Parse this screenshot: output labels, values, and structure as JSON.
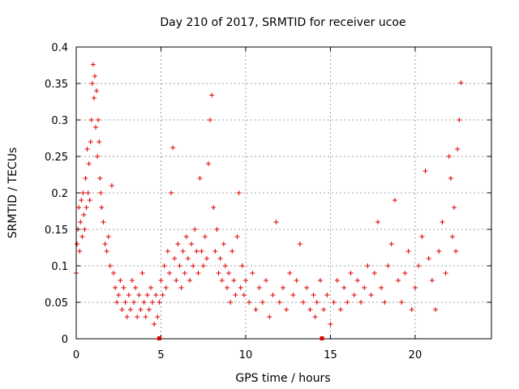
{
  "chart_data": {
    "type": "scatter",
    "title": "Day 210 of 2017, SRMTID for receiver ucoe",
    "xlabel": "GPS time / hours",
    "ylabel": "SRMTID / TECUs",
    "xlim": [
      0,
      24.5
    ],
    "ylim": [
      0,
      0.4
    ],
    "xticks": [
      0,
      5,
      10,
      15,
      20
    ],
    "xtick_labels": [
      "0",
      "5",
      "10",
      "15",
      "20"
    ],
    "yticks": [
      0,
      0.05,
      0.1,
      0.15,
      0.2,
      0.25,
      0.3,
      0.35,
      0.4
    ],
    "ytick_labels": [
      "0",
      "0.05",
      "0.1",
      "0.15",
      "0.2",
      "0.25",
      "0.3",
      "0.35",
      "0.4"
    ],
    "grid": true,
    "marker": "+",
    "color": "#dd0000",
    "markers_at_x_axis": [
      4.9,
      14.5
    ],
    "series": [
      {
        "name": "SRMTID",
        "points": [
          [
            0.0,
            0.09
          ],
          [
            0.05,
            0.13
          ],
          [
            0.1,
            0.15
          ],
          [
            0.15,
            0.18
          ],
          [
            0.2,
            0.12
          ],
          [
            0.25,
            0.16
          ],
          [
            0.3,
            0.19
          ],
          [
            0.35,
            0.14
          ],
          [
            0.4,
            0.2
          ],
          [
            0.45,
            0.17
          ],
          [
            0.5,
            0.15
          ],
          [
            0.55,
            0.22
          ],
          [
            0.6,
            0.18
          ],
          [
            0.65,
            0.26
          ],
          [
            0.7,
            0.2
          ],
          [
            0.75,
            0.24
          ],
          [
            0.8,
            0.19
          ],
          [
            0.85,
            0.27
          ],
          [
            0.9,
            0.3
          ],
          [
            0.95,
            0.35
          ],
          [
            1.0,
            0.376
          ],
          [
            1.05,
            0.33
          ],
          [
            1.1,
            0.36
          ],
          [
            1.15,
            0.29
          ],
          [
            1.2,
            0.34
          ],
          [
            1.25,
            0.25
          ],
          [
            1.3,
            0.3
          ],
          [
            1.35,
            0.27
          ],
          [
            1.4,
            0.22
          ],
          [
            1.45,
            0.2
          ],
          [
            1.5,
            0.18
          ],
          [
            1.6,
            0.16
          ],
          [
            1.7,
            0.13
          ],
          [
            1.8,
            0.12
          ],
          [
            1.9,
            0.14
          ],
          [
            2.0,
            0.1
          ],
          [
            2.1,
            0.21
          ],
          [
            2.2,
            0.09
          ],
          [
            2.3,
            0.07
          ],
          [
            2.4,
            0.05
          ],
          [
            2.5,
            0.06
          ],
          [
            2.6,
            0.08
          ],
          [
            2.7,
            0.04
          ],
          [
            2.8,
            0.07
          ],
          [
            2.9,
            0.05
          ],
          [
            3.0,
            0.03
          ],
          [
            3.1,
            0.06
          ],
          [
            3.2,
            0.04
          ],
          [
            3.3,
            0.08
          ],
          [
            3.4,
            0.05
          ],
          [
            3.5,
            0.07
          ],
          [
            3.6,
            0.03
          ],
          [
            3.7,
            0.06
          ],
          [
            3.8,
            0.04
          ],
          [
            3.9,
            0.09
          ],
          [
            4.0,
            0.05
          ],
          [
            4.1,
            0.03
          ],
          [
            4.2,
            0.06
          ],
          [
            4.3,
            0.04
          ],
          [
            4.4,
            0.07
          ],
          [
            4.5,
            0.05
          ],
          [
            4.6,
            0.02
          ],
          [
            4.7,
            0.06
          ],
          [
            4.8,
            0.03
          ],
          [
            4.9,
            0.05
          ],
          [
            5.0,
            0.08
          ],
          [
            5.1,
            0.06
          ],
          [
            5.2,
            0.1
          ],
          [
            5.3,
            0.07
          ],
          [
            5.4,
            0.12
          ],
          [
            5.5,
            0.09
          ],
          [
            5.6,
            0.2
          ],
          [
            5.7,
            0.262
          ],
          [
            5.8,
            0.11
          ],
          [
            5.9,
            0.08
          ],
          [
            6.0,
            0.13
          ],
          [
            6.1,
            0.1
          ],
          [
            6.2,
            0.07
          ],
          [
            6.3,
            0.12
          ],
          [
            6.4,
            0.09
          ],
          [
            6.5,
            0.14
          ],
          [
            6.6,
            0.11
          ],
          [
            6.7,
            0.08
          ],
          [
            6.8,
            0.13
          ],
          [
            6.9,
            0.1
          ],
          [
            7.0,
            0.15
          ],
          [
            7.1,
            0.12
          ],
          [
            7.2,
            0.09
          ],
          [
            7.3,
            0.22
          ],
          [
            7.4,
            0.12
          ],
          [
            7.5,
            0.1
          ],
          [
            7.6,
            0.14
          ],
          [
            7.7,
            0.11
          ],
          [
            7.8,
            0.24
          ],
          [
            7.9,
            0.3
          ],
          [
            8.0,
            0.334
          ],
          [
            8.1,
            0.18
          ],
          [
            8.2,
            0.12
          ],
          [
            8.3,
            0.15
          ],
          [
            8.4,
            0.09
          ],
          [
            8.5,
            0.11
          ],
          [
            8.6,
            0.08
          ],
          [
            8.7,
            0.13
          ],
          [
            8.8,
            0.1
          ],
          [
            8.9,
            0.07
          ],
          [
            9.0,
            0.09
          ],
          [
            9.1,
            0.05
          ],
          [
            9.2,
            0.12
          ],
          [
            9.3,
            0.08
          ],
          [
            9.4,
            0.06
          ],
          [
            9.5,
            0.14
          ],
          [
            9.6,
            0.2
          ],
          [
            9.7,
            0.07
          ],
          [
            9.8,
            0.1
          ],
          [
            9.9,
            0.06
          ],
          [
            10.0,
            0.08
          ],
          [
            10.2,
            0.05
          ],
          [
            10.4,
            0.09
          ],
          [
            10.6,
            0.04
          ],
          [
            10.8,
            0.07
          ],
          [
            11.0,
            0.05
          ],
          [
            11.2,
            0.08
          ],
          [
            11.4,
            0.03
          ],
          [
            11.6,
            0.06
          ],
          [
            11.8,
            0.16
          ],
          [
            12.0,
            0.05
          ],
          [
            12.2,
            0.07
          ],
          [
            12.4,
            0.04
          ],
          [
            12.6,
            0.09
          ],
          [
            12.8,
            0.06
          ],
          [
            13.0,
            0.08
          ],
          [
            13.2,
            0.13
          ],
          [
            13.4,
            0.05
          ],
          [
            13.6,
            0.07
          ],
          [
            13.8,
            0.04
          ],
          [
            14.0,
            0.06
          ],
          [
            14.1,
            0.03
          ],
          [
            14.2,
            0.05
          ],
          [
            14.4,
            0.08
          ],
          [
            14.6,
            0.04
          ],
          [
            14.8,
            0.06
          ],
          [
            15.0,
            0.02
          ],
          [
            15.2,
            0.05
          ],
          [
            15.4,
            0.08
          ],
          [
            15.6,
            0.04
          ],
          [
            15.8,
            0.07
          ],
          [
            16.0,
            0.05
          ],
          [
            16.2,
            0.09
          ],
          [
            16.4,
            0.06
          ],
          [
            16.6,
            0.08
          ],
          [
            16.8,
            0.05
          ],
          [
            17.0,
            0.07
          ],
          [
            17.2,
            0.1
          ],
          [
            17.4,
            0.06
          ],
          [
            17.6,
            0.09
          ],
          [
            17.8,
            0.16
          ],
          [
            18.0,
            0.07
          ],
          [
            18.2,
            0.05
          ],
          [
            18.4,
            0.1
          ],
          [
            18.6,
            0.13
          ],
          [
            18.8,
            0.19
          ],
          [
            19.0,
            0.08
          ],
          [
            19.2,
            0.05
          ],
          [
            19.4,
            0.09
          ],
          [
            19.6,
            0.12
          ],
          [
            19.8,
            0.04
          ],
          [
            20.0,
            0.07
          ],
          [
            20.2,
            0.1
          ],
          [
            20.4,
            0.14
          ],
          [
            20.6,
            0.23
          ],
          [
            20.8,
            0.11
          ],
          [
            21.0,
            0.08
          ],
          [
            21.2,
            0.04
          ],
          [
            21.4,
            0.12
          ],
          [
            21.6,
            0.16
          ],
          [
            21.8,
            0.09
          ],
          [
            22.0,
            0.25
          ],
          [
            22.1,
            0.22
          ],
          [
            22.2,
            0.14
          ],
          [
            22.3,
            0.18
          ],
          [
            22.4,
            0.12
          ],
          [
            22.5,
            0.26
          ],
          [
            22.6,
            0.3
          ],
          [
            22.7,
            0.351
          ]
        ]
      }
    ]
  }
}
